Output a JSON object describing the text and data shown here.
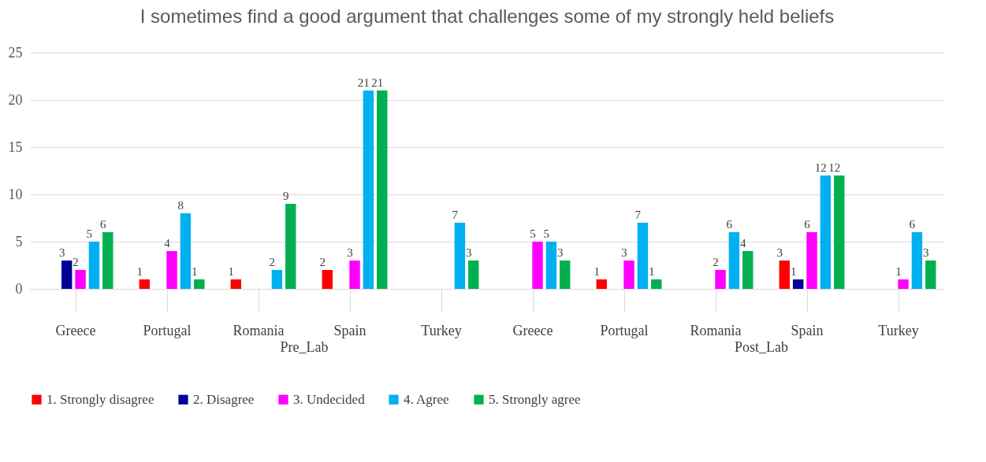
{
  "chart_data": {
    "type": "bar",
    "title": "I sometimes find a good argument that challenges some of my strongly held beliefs",
    "categories": [
      "Greece",
      "Portugal",
      "Romania",
      "Spain",
      "Turkey",
      "Greece",
      "Portugal",
      "Romania",
      "Spain",
      "Turkey"
    ],
    "annotations": [
      "Pre_Lab",
      "Post_Lab"
    ],
    "series": [
      {
        "name": "1. Strongly disagree",
        "color": "#ff0000",
        "values": [
          null,
          1,
          1,
          2,
          null,
          null,
          1,
          null,
          3,
          null
        ]
      },
      {
        "name": "2. Disagree",
        "color": "#000099",
        "values": [
          3,
          null,
          null,
          null,
          null,
          null,
          null,
          null,
          1,
          null
        ]
      },
      {
        "name": "3. Undecided",
        "color": "#ff00ff",
        "values": [
          2,
          4,
          null,
          3,
          null,
          5,
          3,
          2,
          6,
          1
        ]
      },
      {
        "name": "4. Agree",
        "color": "#00b0f0",
        "values": [
          5,
          8,
          2,
          21,
          7,
          5,
          7,
          6,
          12,
          6
        ]
      },
      {
        "name": "5. Strongly agree",
        "color": "#00b050",
        "values": [
          6,
          1,
          9,
          21,
          3,
          3,
          1,
          4,
          12,
          3
        ]
      }
    ],
    "ylim": [
      0,
      25
    ],
    "yticks": [
      0,
      5,
      10,
      15,
      20,
      25
    ],
    "grid": "y",
    "legend": "bottom",
    "data_labels": true
  }
}
